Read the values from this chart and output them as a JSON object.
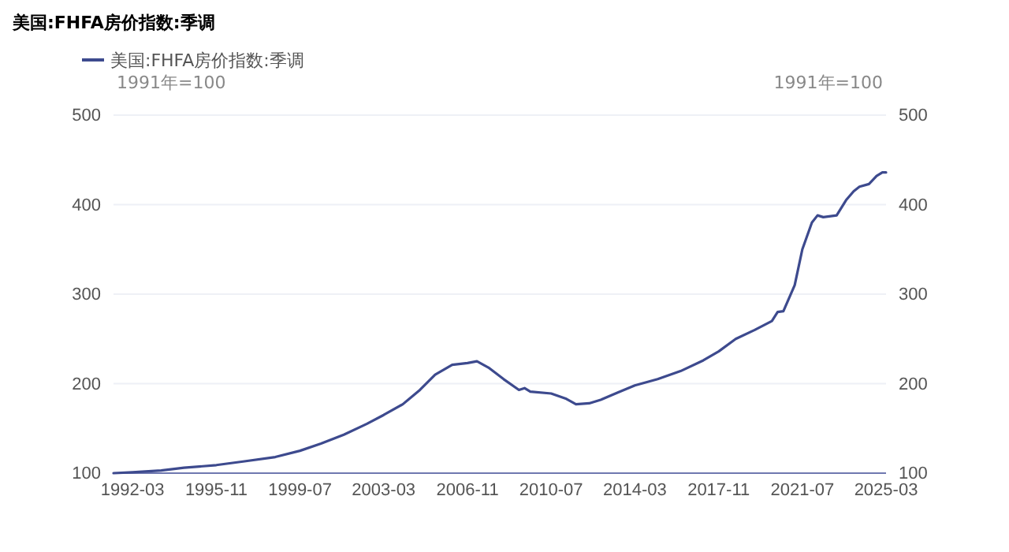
{
  "chart_data": {
    "type": "line",
    "title": "美国:FHFA房价指数:季调",
    "ylabel": "1991年=100",
    "y2label": "1991年=100",
    "x": [
      "1991-05",
      "1992-03",
      "1993-06",
      "1994-06",
      "1995-11",
      "1997-01",
      "1998-06",
      "1999-07",
      "2000-06",
      "2001-06",
      "2002-06",
      "2003-03",
      "2004-01",
      "2004-10",
      "2005-06",
      "2006-03",
      "2006-11",
      "2007-04",
      "2007-10",
      "2008-06",
      "2009-02",
      "2009-05",
      "2009-08",
      "2010-07",
      "2011-03",
      "2011-08",
      "2012-03",
      "2012-09",
      "2013-06",
      "2014-03",
      "2015-03",
      "2016-03",
      "2017-03",
      "2017-11",
      "2018-08",
      "2019-06",
      "2020-03",
      "2020-06",
      "2020-09",
      "2021-03",
      "2021-07",
      "2021-12",
      "2022-03",
      "2022-06",
      "2023-01",
      "2023-06",
      "2023-10",
      "2024-01",
      "2024-06",
      "2024-10",
      "2025-01",
      "2025-03"
    ],
    "series": [
      {
        "name": "美国:FHFA房价指数:季调",
        "color": "#3d4a8e",
        "values": [
          100,
          101,
          103,
          106,
          109,
          113,
          118,
          125,
          133,
          143,
          155,
          165,
          177,
          193,
          210,
          221,
          223,
          225,
          218,
          205,
          193,
          195,
          191,
          189,
          183,
          177,
          178,
          182,
          190,
          198,
          205,
          214,
          226,
          236,
          250,
          260,
          270,
          280,
          281,
          310,
          350,
          380,
          388,
          386,
          388,
          405,
          415,
          420,
          423,
          432,
          436,
          436
        ]
      }
    ],
    "xlim": [
      "1991-05",
      "2025-03"
    ],
    "xticks": [
      {
        "value": "1992-03",
        "label": "1992-03"
      },
      {
        "value": "1995-11",
        "label": "1995-11"
      },
      {
        "value": "1999-07",
        "label": "1999-07"
      },
      {
        "value": "2003-03",
        "label": "2003-03"
      },
      {
        "value": "2006-11",
        "label": "2006-11"
      },
      {
        "value": "2010-07",
        "label": "2010-07"
      },
      {
        "value": "2014-03",
        "label": "2014-03"
      },
      {
        "value": "2017-11",
        "label": "2017-11"
      },
      {
        "value": "2021-07",
        "label": "2021-07"
      },
      {
        "value": "2025-03",
        "label": "2025-03"
      }
    ],
    "ylim": [
      100,
      500
    ],
    "yticks": [
      100,
      200,
      300,
      400,
      500
    ],
    "y2lim": [
      100,
      500
    ],
    "y2ticks": [
      100,
      200,
      300,
      400,
      500
    ],
    "grid": "y",
    "legend": "top left",
    "line_style": "solid",
    "marker": "none"
  }
}
